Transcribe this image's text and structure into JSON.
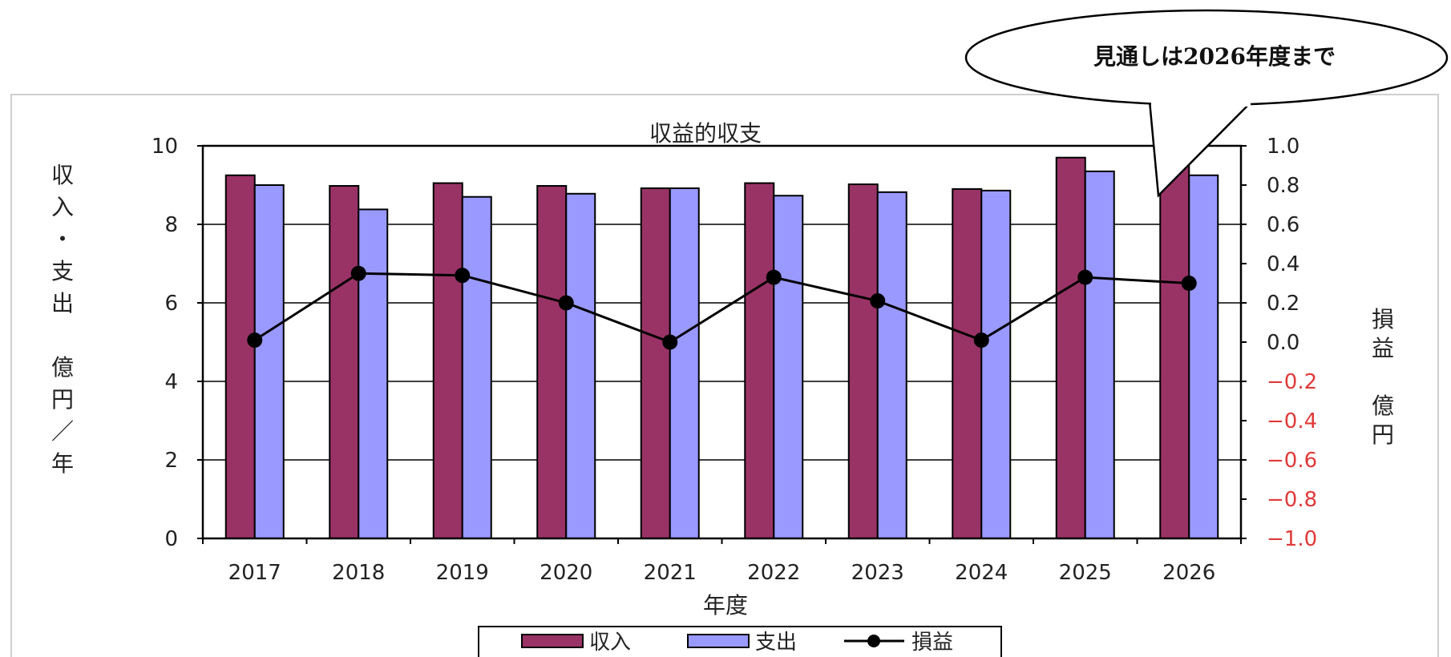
{
  "callout": {
    "text": "見通しは2026年度まで"
  },
  "chart_data": {
    "type": "bar",
    "title": "収益的収支",
    "xlabel": "年度",
    "ylabel": "収入・支出　億円／年",
    "y2label": "損益　億円",
    "categories": [
      "2017",
      "2018",
      "2019",
      "2020",
      "2021",
      "2022",
      "2023",
      "2024",
      "2025",
      "2026"
    ],
    "ylim": [
      0,
      10
    ],
    "y2lim": [
      -1.0,
      1.0
    ],
    "yticks": [
      "0",
      "2",
      "4",
      "6",
      "8",
      "10"
    ],
    "y2ticks": [
      "1.0",
      "0.8",
      "0.6",
      "0.4",
      "0.2",
      "0.0",
      "−0.2",
      "−0.4",
      "−0.6",
      "−0.8",
      "−1.0"
    ],
    "series": [
      {
        "name": "収入",
        "type": "bar",
        "axis": "left",
        "color": "#993366",
        "values": [
          9.25,
          8.98,
          9.05,
          8.98,
          8.92,
          9.05,
          9.02,
          8.9,
          9.7,
          9.5
        ]
      },
      {
        "name": "支出",
        "type": "bar",
        "axis": "left",
        "color": "#9999ff",
        "values": [
          9.0,
          8.38,
          8.7,
          8.78,
          8.92,
          8.73,
          8.82,
          8.86,
          9.35,
          9.25
        ]
      },
      {
        "name": "損益",
        "type": "line",
        "axis": "right",
        "color": "#000000",
        "values": [
          0.01,
          0.35,
          0.34,
          0.2,
          0.0,
          0.33,
          0.21,
          0.01,
          0.33,
          0.3
        ]
      }
    ],
    "legend": {
      "position": "bottom-center"
    },
    "grid": true
  }
}
